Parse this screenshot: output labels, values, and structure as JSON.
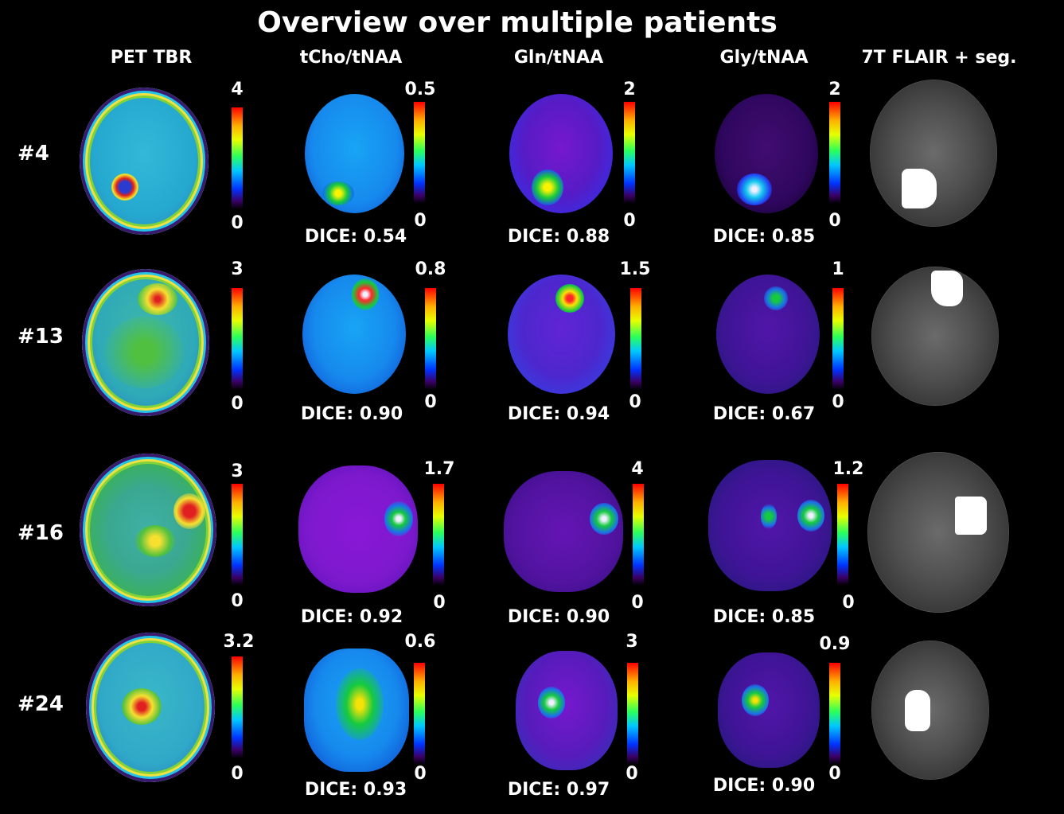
{
  "title": "Overview over multiple patients",
  "columns": [
    "PET TBR",
    "tCho/tNAA",
    "Gln/tNAA",
    "Gly/tNAA",
    "7T FLAIR + seg."
  ],
  "rows": [
    {
      "label": "#4",
      "pet": {
        "max": "4",
        "min": "0"
      },
      "tcho": {
        "max": "0.5",
        "min": "0",
        "dice": "DICE: 0.54"
      },
      "gln": {
        "max": "2",
        "min": "0",
        "dice": "DICE: 0.88"
      },
      "gly": {
        "max": "2",
        "min": "0",
        "dice": "DICE: 0.85"
      }
    },
    {
      "label": "#13",
      "pet": {
        "max": "3",
        "min": "0"
      },
      "tcho": {
        "max": "0.8",
        "min": "0",
        "dice": "DICE: 0.90"
      },
      "gln": {
        "max": "1.5",
        "min": "0",
        "dice": "DICE: 0.94"
      },
      "gly": {
        "max": "1",
        "min": "0",
        "dice": "DICE: 0.67"
      }
    },
    {
      "label": "#16",
      "pet": {
        "max": "3",
        "min": "0"
      },
      "tcho": {
        "max": "1.7",
        "min": "0",
        "dice": "DICE: 0.92"
      },
      "gln": {
        "max": "4",
        "min": "0",
        "dice": "DICE: 0.90"
      },
      "gly": {
        "max": "1.2",
        "min": "0",
        "dice": "DICE: 0.85"
      }
    },
    {
      "label": "#24",
      "pet": {
        "max": "3.2",
        "min": "0"
      },
      "tcho": {
        "max": "0.6",
        "min": "0",
        "dice": "DICE: 0.93"
      },
      "gln": {
        "max": "3",
        "min": "0",
        "dice": "DICE: 0.97"
      },
      "gly": {
        "max": "0.9",
        "min": "0",
        "dice": "DICE: 0.90"
      }
    }
  ]
}
